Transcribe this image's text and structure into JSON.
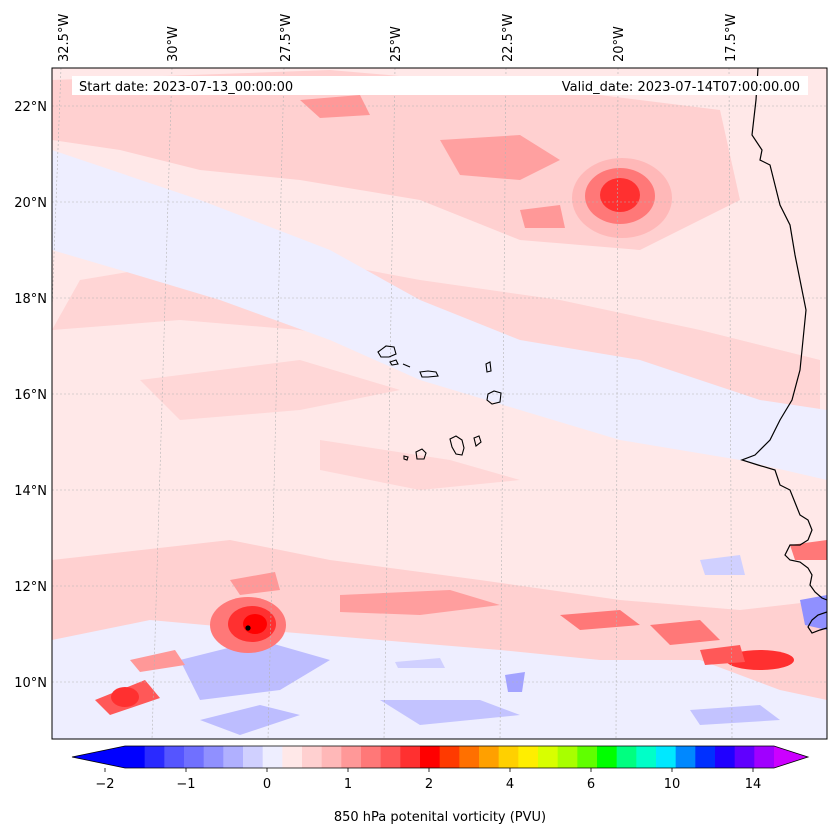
{
  "header": {
    "start_date": "Start date: 2023-07-13_00:00:00",
    "valid_date": "Valid_date: 2023-07-14T07:00:00.00"
  },
  "longitude_labels": [
    "32.5°W",
    "30°W",
    "27.5°W",
    "25°W",
    "22.5°W",
    "20°W",
    "17.5°W"
  ],
  "latitude_labels": [
    "22°N",
    "20°N",
    "18°N",
    "16°N",
    "14°N",
    "12°N",
    "10°N"
  ],
  "colorbar": {
    "label": "850 hPa potenital vorticity (PVU)",
    "tick_labels": [
      "−2",
      "−1",
      "0",
      "1",
      "2",
      "4",
      "6",
      "10",
      "14"
    ],
    "colors": [
      "#0000ff",
      "#2a2aff",
      "#5555ff",
      "#7070ff",
      "#9090ff",
      "#b0b0ff",
      "#d0d0ff",
      "#eeeeff",
      "#ffe8e8",
      "#ffd0d0",
      "#ffb8b8",
      "#ff9898",
      "#ff7878",
      "#ff5858",
      "#ff3030",
      "#ff0000",
      "#ff3a00",
      "#ff7000",
      "#ffa000",
      "#ffd000",
      "#ffee00",
      "#d8ff00",
      "#a8ff00",
      "#60ff00",
      "#00ff00",
      "#00ff80",
      "#00ffc8",
      "#00e8ff",
      "#0088ff",
      "#0030ff",
      "#2000ff",
      "#6000ff",
      "#a000ff"
    ],
    "under_color": "#0000ff",
    "over_color": "#cc00ff"
  },
  "map": {
    "ocean_background": "#ffe8e8",
    "coastline_color": "#000000",
    "marker_color": "#000000"
  }
}
